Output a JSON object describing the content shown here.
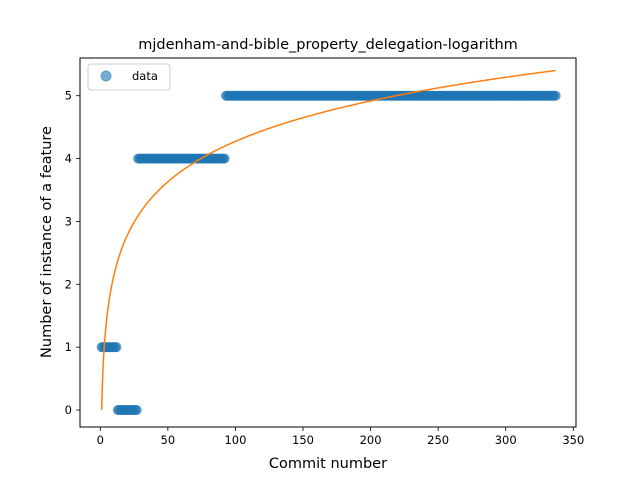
{
  "chart_data": {
    "type": "scatter",
    "title": "mjdenham-and-bible_property_delegation-logarithm",
    "xlabel": "Commit number",
    "ylabel": "Number of instance of a feature",
    "xlim": [
      -15,
      352
    ],
    "ylim": [
      -0.27,
      5.6
    ],
    "xticks": [
      0,
      50,
      100,
      150,
      200,
      250,
      300,
      350
    ],
    "yticks": [
      0,
      1,
      2,
      3,
      4,
      5
    ],
    "grid": false,
    "legend": {
      "placement": "top-left",
      "entries": [
        "data"
      ]
    },
    "series": [
      {
        "name": "data",
        "kind": "points",
        "color": "#1f77b4",
        "segments": [
          {
            "x_start": 1,
            "x_end": 12,
            "y": 1
          },
          {
            "x_start": 13,
            "x_end": 27,
            "y": 0
          },
          {
            "x_start": 28,
            "x_end": 92,
            "y": 4
          },
          {
            "x_start": 93,
            "x_end": 337,
            "y": 5
          }
        ]
      },
      {
        "kind": "logarithmic fit",
        "color": "#ff7f0e",
        "equation": {
          "a": 0.928,
          "b": 0.0,
          "x_start": 1,
          "x_end": 337
        }
      }
    ]
  }
}
